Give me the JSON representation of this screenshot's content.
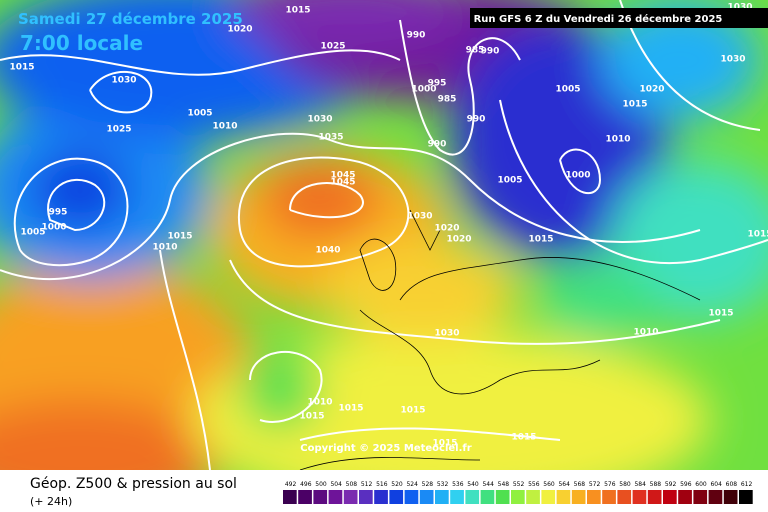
{
  "header": {
    "date": "Samedi 27 décembre 2025",
    "time": "7:00 locale",
    "run": "Run GFS 6 Z du Vendredi 26 décembre 2025"
  },
  "copyright": "Copyright © 2025 Meteociel.fr",
  "footer": {
    "title": "Géop. Z500 & pression au sol",
    "subtitle": "(+ 24h)"
  },
  "colorbar": {
    "values": [
      492,
      496,
      500,
      504,
      508,
      512,
      516,
      520,
      524,
      528,
      532,
      536,
      540,
      544,
      548,
      552,
      556,
      560,
      564,
      568,
      572,
      576,
      580,
      584,
      588,
      592,
      596,
      600,
      604,
      608,
      612
    ],
    "colors": [
      "#3a0050",
      "#4b0066",
      "#5c0a80",
      "#6e1499",
      "#7a2ab0",
      "#5a2fc0",
      "#2a2fd0",
      "#1040e0",
      "#1060f0",
      "#1a8af5",
      "#20b0f5",
      "#30d0f0",
      "#40e0c0",
      "#40e080",
      "#50e050",
      "#90f040",
      "#c0f040",
      "#f0f040",
      "#f8d030",
      "#f8b020",
      "#f89020",
      "#f07020",
      "#e85020",
      "#e03020",
      "#d01818",
      "#c00010",
      "#a00010",
      "#800010",
      "#600010",
      "#400008",
      "#000000"
    ]
  },
  "isobars": [
    "1015",
    "1020",
    "1025",
    "1015",
    "1030",
    "1025",
    "1005",
    "1010",
    "1030",
    "1035",
    "990",
    "985",
    "990",
    "995",
    "1000",
    "985",
    "990",
    "990",
    "1005",
    "1015",
    "1020",
    "1030",
    "1030",
    "1010",
    "1000",
    "1005",
    "1045",
    "1045",
    "1040",
    "1030",
    "1020",
    "1020",
    "1015",
    "1015",
    "1010",
    "1005",
    "995",
    "1000",
    "1010",
    "1015",
    "1015",
    "1030",
    "1010",
    "1015",
    "1015",
    "1015",
    "1015",
    "1015"
  ]
}
